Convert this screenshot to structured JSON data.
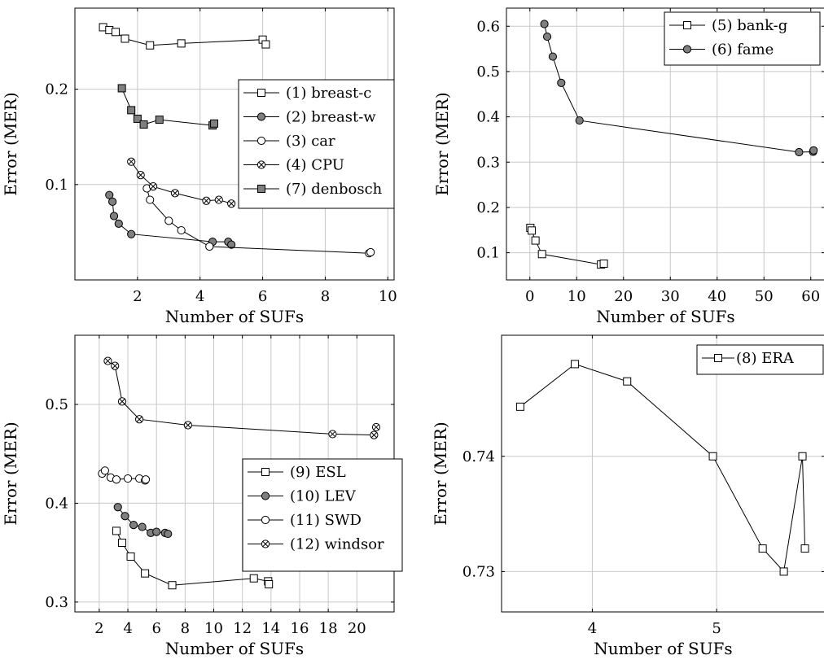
{
  "chart_data": [
    {
      "type": "line",
      "xlabel": "Number of SUFs",
      "ylabel": "Error (MER)",
      "xlim": [
        0,
        10.2
      ],
      "ylim": [
        0.0,
        0.285
      ],
      "xticks": [
        2,
        4,
        6,
        8,
        10
      ],
      "xtick_labels": [
        "2",
        "4",
        "6",
        "8",
        "10"
      ],
      "yticks": [
        0.1,
        0.2
      ],
      "ytick_labels": [
        "0.1",
        "0.2"
      ],
      "grid": true,
      "legend_position": "right",
      "series": [
        {
          "name": "(1) breast-c",
          "marker": "square-open",
          "x": [
            0.9,
            1.1,
            1.3,
            1.6,
            2.4,
            3.4,
            6.0,
            6.1
          ],
          "y": [
            0.265,
            0.262,
            0.26,
            0.253,
            0.246,
            0.248,
            0.252,
            0.247
          ]
        },
        {
          "name": "(2) breast-w",
          "marker": "circle-filled",
          "x": [
            1.1,
            1.2,
            1.25,
            1.4,
            1.8,
            4.4,
            4.9,
            5.0
          ],
          "y": [
            0.089,
            0.082,
            0.067,
            0.059,
            0.048,
            0.04,
            0.04,
            0.037
          ]
        },
        {
          "name": "(3) car",
          "marker": "circle-open",
          "x": [
            2.3,
            2.4,
            3.0,
            3.4,
            4.3,
            9.4,
            9.45
          ],
          "y": [
            0.096,
            0.084,
            0.062,
            0.052,
            0.035,
            0.028,
            0.029
          ]
        },
        {
          "name": "(4) CPU",
          "marker": "circle-cross",
          "x": [
            1.8,
            2.1,
            2.5,
            3.2,
            4.2,
            4.6,
            5.0
          ],
          "y": [
            0.124,
            0.11,
            0.098,
            0.091,
            0.083,
            0.084,
            0.08
          ]
        },
        {
          "name": "(7) denbosch",
          "marker": "square-filled",
          "x": [
            1.5,
            1.8,
            2.0,
            2.2,
            2.7,
            4.4,
            4.45
          ],
          "y": [
            0.201,
            0.178,
            0.169,
            0.163,
            0.168,
            0.162,
            0.164
          ]
        }
      ]
    },
    {
      "type": "line",
      "xlabel": "Number of SUFs",
      "ylabel": "Error (MER)",
      "xlim": [
        -5,
        63
      ],
      "ylim": [
        0.04,
        0.64
      ],
      "xticks": [
        0,
        10,
        20,
        30,
        40,
        50,
        60
      ],
      "xtick_labels": [
        "0",
        "10",
        "20",
        "30",
        "40",
        "50",
        "60"
      ],
      "yticks": [
        0.1,
        0.2,
        0.3,
        0.4,
        0.5,
        0.6
      ],
      "ytick_labels": [
        "0.1",
        "0.2",
        "0.3",
        "0.4",
        "0.5",
        "0.6"
      ],
      "grid": true,
      "legend_position": "top-right",
      "series": [
        {
          "name": "(5) bank-g",
          "marker": "square-open",
          "x": [
            0.1,
            0.4,
            1.2,
            2.6,
            15.2,
            15.8
          ],
          "y": [
            0.155,
            0.149,
            0.127,
            0.097,
            0.074,
            0.076
          ]
        },
        {
          "name": "(6) fame",
          "marker": "circle-filled",
          "x": [
            3.1,
            3.7,
            4.9,
            6.7,
            10.6,
            57.5,
            60.5,
            60.6
          ],
          "y": [
            0.605,
            0.577,
            0.533,
            0.475,
            0.392,
            0.322,
            0.323,
            0.326
          ]
        }
      ]
    },
    {
      "type": "line",
      "xlabel": "Number of SUFs",
      "ylabel": "Error (MER)",
      "xlim": [
        0.3,
        22.6
      ],
      "ylim": [
        0.29,
        0.57
      ],
      "xticks": [
        2,
        4,
        6,
        8,
        10,
        12,
        14,
        16,
        18,
        20
      ],
      "xtick_labels": [
        "2",
        "4",
        "6",
        "8",
        "10",
        "12",
        "14",
        "16",
        "18",
        "20"
      ],
      "yticks": [
        0.3,
        0.4,
        0.5
      ],
      "ytick_labels": [
        "0.3",
        "0.4",
        "0.5"
      ],
      "grid": true,
      "legend_position": "right",
      "series": [
        {
          "name": "(9) ESL",
          "marker": "square-open",
          "x": [
            3.2,
            3.6,
            4.2,
            5.2,
            7.1,
            12.8,
            13.8,
            13.85
          ],
          "y": [
            0.372,
            0.36,
            0.346,
            0.329,
            0.317,
            0.324,
            0.321,
            0.318
          ]
        },
        {
          "name": "(10) LEV",
          "marker": "circle-filled",
          "x": [
            3.3,
            3.8,
            4.4,
            5.0,
            5.6,
            6.0,
            6.6,
            6.8
          ],
          "y": [
            0.396,
            0.387,
            0.378,
            0.376,
            0.37,
            0.371,
            0.37,
            0.369
          ]
        },
        {
          "name": "(11) SWD",
          "marker": "circle-open",
          "x": [
            2.2,
            2.4,
            2.8,
            3.2,
            4.0,
            4.8,
            5.2,
            5.25
          ],
          "y": [
            0.43,
            0.433,
            0.426,
            0.424,
            0.425,
            0.425,
            0.423,
            0.424
          ]
        },
        {
          "name": "(12) windsor",
          "marker": "circle-cross",
          "x": [
            2.6,
            3.1,
            3.6,
            4.8,
            8.2,
            18.3,
            21.2,
            21.35
          ],
          "y": [
            0.544,
            0.539,
            0.503,
            0.485,
            0.479,
            0.47,
            0.469,
            0.477
          ]
        }
      ]
    },
    {
      "type": "line",
      "xlabel": "Number of SUFs",
      "ylabel": "Error (MER)",
      "xlim": [
        3.27,
        5.87
      ],
      "ylim": [
        0.7265,
        0.7505
      ],
      "xticks": [
        4,
        5
      ],
      "xtick_labels": [
        "4",
        "5"
      ],
      "yticks": [
        0.73,
        0.74
      ],
      "ytick_labels": [
        "0.73",
        "0.74"
      ],
      "grid": true,
      "legend_position": "top-right",
      "series": [
        {
          "name": "(8) ERA",
          "marker": "square-open",
          "x": [
            3.42,
            3.86,
            4.28,
            4.97,
            5.37,
            5.54,
            5.69,
            5.71
          ],
          "y": [
            0.7443,
            0.748,
            0.7465,
            0.74,
            0.732,
            0.73,
            0.74,
            0.732
          ]
        }
      ]
    }
  ]
}
